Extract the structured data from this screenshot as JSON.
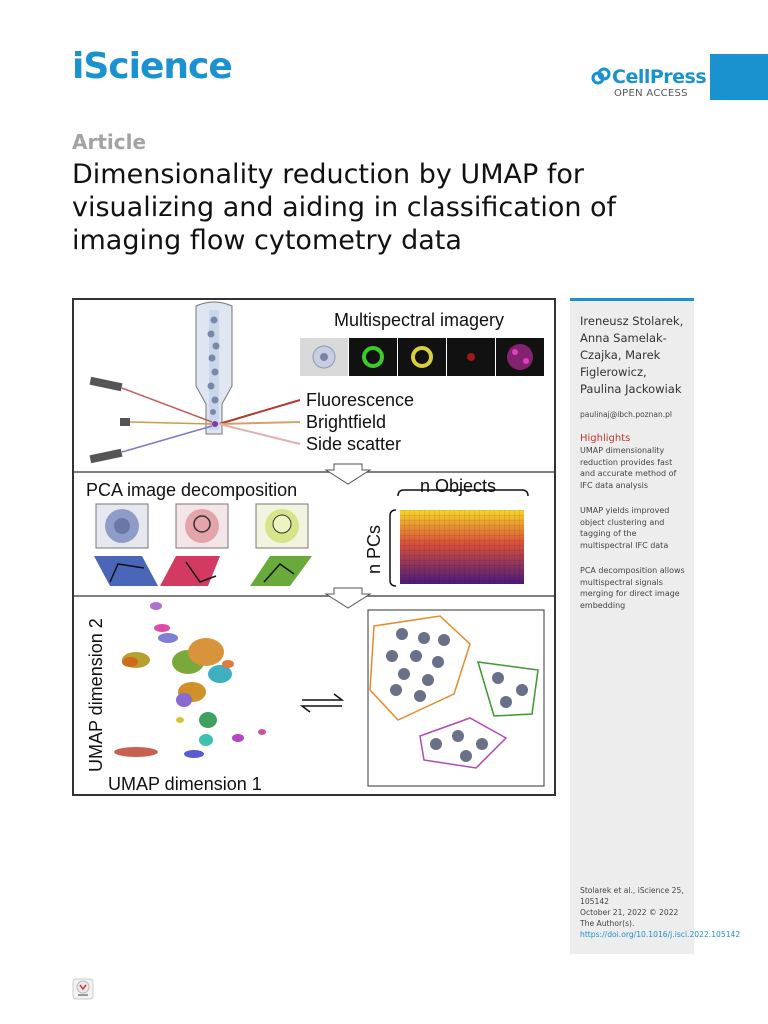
{
  "header": {
    "journal": "iScience",
    "publisher": "CellPress",
    "access": "OPEN ACCESS"
  },
  "article": {
    "type_label": "Article",
    "title": "Dimensionality reduction by UMAP for visualizing and aiding in classification of imaging flow cytometry data"
  },
  "graphical_abstract": {
    "multispectral_label": "Multispectral imagery",
    "channels": [
      "Fluorescence",
      "Brightfield",
      "Side scatter"
    ],
    "pca_label": "PCA image decomposition",
    "n_objects_label": "n Objects",
    "n_pcs_label": "n PCs",
    "umap_y_label": "UMAP dimension 2",
    "umap_x_label": "UMAP dimension 1",
    "colors": {
      "blue_cell": "#8f9cc8",
      "red_cell": "#e3a4aa",
      "green_cell": "#d6e58a",
      "fluor_green": "#3ccc28",
      "fluor_yellow": "#d8d03a",
      "cluster_orange": "#e88a2a",
      "cluster_green": "#3a9a2a",
      "cluster_purple": "#b548b8"
    }
  },
  "sidebar": {
    "authors": "Ireneusz Stolarek, Anna Samelak-Czajka, Marek Figlerowicz, Paulina Jackowiak",
    "email": "paulinaj@ibch.poznan.pl",
    "highlights_title": "Highlights",
    "highlights": [
      "UMAP dimensionality reduction provides fast and accurate method of IFC data analysis",
      "UMAP yields improved object clustering and tagging of the multispectral IFC data",
      "PCA decomposition allows multispectral signals merging for direct image embedding"
    ],
    "citation": "Stolarek et al., iScience 25, 105142",
    "date_line": "October 21, 2022 © 2022 The Author(s).",
    "doi": "https://doi.org/10.1016/j.isci.2022.105142"
  }
}
